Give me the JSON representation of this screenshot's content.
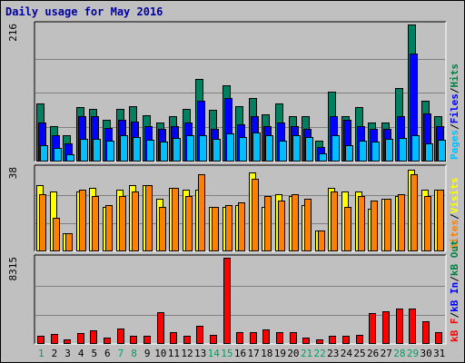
{
  "chart_data": {
    "type": "bar",
    "title": "Daily usage for May 2016",
    "categories": [
      "1",
      "2",
      "3",
      "4",
      "5",
      "6",
      "7",
      "8",
      "9",
      "10",
      "11",
      "12",
      "13",
      "14",
      "15",
      "16",
      "17",
      "18",
      "19",
      "20",
      "21",
      "22",
      "23",
      "24",
      "25",
      "26",
      "27",
      "28",
      "29",
      "30",
      "31"
    ],
    "weekend_days": [
      "1",
      "7",
      "8",
      "14",
      "15",
      "21",
      "22",
      "28",
      "29"
    ],
    "grid": true,
    "panels": [
      {
        "name": "top",
        "ymax_label": "216",
        "ylim": [
          0,
          216
        ],
        "legend": [
          {
            "text": "Pages",
            "color": "#00c0ff"
          },
          {
            "text": "/",
            "color": "#000000"
          },
          {
            "text": "Files",
            "color": "#0000ff"
          },
          {
            "text": "/",
            "color": "#000000"
          },
          {
            "text": "Hits",
            "color": "#008040"
          }
        ],
        "series": [
          {
            "name": "Hits",
            "color": "#008060",
            "values": [
              90,
              55,
              40,
              85,
              82,
              65,
              82,
              87,
              72,
              60,
              70,
              82,
              130,
              80,
              120,
              87,
              100,
              73,
              90,
              70,
              70,
              32,
              110,
              70,
              85,
              60,
              60,
              115,
              216,
              95,
              70
            ]
          },
          {
            "name": "Files",
            "color": "#0000ff",
            "values": [
              60,
              40,
              28,
              70,
              70,
              52,
              65,
              62,
              55,
              50,
              55,
              60,
              95,
              50,
              100,
              58,
              70,
              55,
              60,
              55,
              50,
              22,
              70,
              65,
              55,
              50,
              50,
              70,
              170,
              75,
              55
            ]
          },
          {
            "name": "Pages",
            "color": "#00bfff",
            "values": [
              25,
              20,
              10,
              35,
              35,
              32,
              40,
              38,
              33,
              30,
              36,
              40,
              40,
              35,
              43,
              37,
              45,
              40,
              32,
              40,
              38,
              12,
              40,
              25,
              32,
              30,
              35,
              36,
              40,
              28,
              33
            ]
          }
        ]
      },
      {
        "name": "middle",
        "ymax_label": "38",
        "ylim": [
          0,
          38
        ],
        "legend": [
          {
            "text": "Sites",
            "color": "#ff8000"
          },
          {
            "text": "/",
            "color": "#000000"
          },
          {
            "text": "Visits",
            "color": "#ffff00"
          }
        ],
        "series": [
          {
            "name": "Visits",
            "color": "#ffff00",
            "values": [
              30,
              27,
              8,
              27,
              29,
              20,
              28,
              30,
              30,
              24,
              29,
              28,
              28,
              20,
              20,
              21,
              36,
              20,
              26,
              25,
              21,
              9,
              29,
              27,
              27,
              19,
              24,
              25,
              37,
              28,
              28
            ]
          },
          {
            "name": "Sites",
            "color": "#ff8000",
            "values": [
              26,
              15,
              8,
              28,
              25,
              21,
              25,
              27,
              30,
              20,
              29,
              25,
              35,
              20,
              21,
              22,
              33,
              25,
              23,
              26,
              24,
              9,
              27,
              20,
              25,
              23,
              24,
              26,
              35,
              25,
              28
            ]
          }
        ]
      },
      {
        "name": "bottom",
        "ymax_label": "8315",
        "ylim": [
          0,
          8315
        ],
        "legend": [
          {
            "text": "kB F",
            "color": "#ff0000"
          },
          {
            "text": "/",
            "color": "#000000"
          },
          {
            "text": "kB In",
            "color": "#0000ff"
          },
          {
            "text": "/",
            "color": "#000000"
          },
          {
            "text": "kB Out",
            "color": "#008040"
          }
        ],
        "series": [
          {
            "name": "kB F",
            "color": "#ff0000",
            "values": [
              700,
              900,
              350,
              1000,
              1200,
              550,
              1400,
              700,
              700,
              3000,
              1100,
              700,
              1700,
              800,
              8315,
              1100,
              1100,
              1300,
              1100,
              1100,
              550,
              350,
              700,
              700,
              800,
              2900,
              3100,
              3400,
              3400,
              2100,
              1100
            ]
          }
        ]
      }
    ]
  }
}
